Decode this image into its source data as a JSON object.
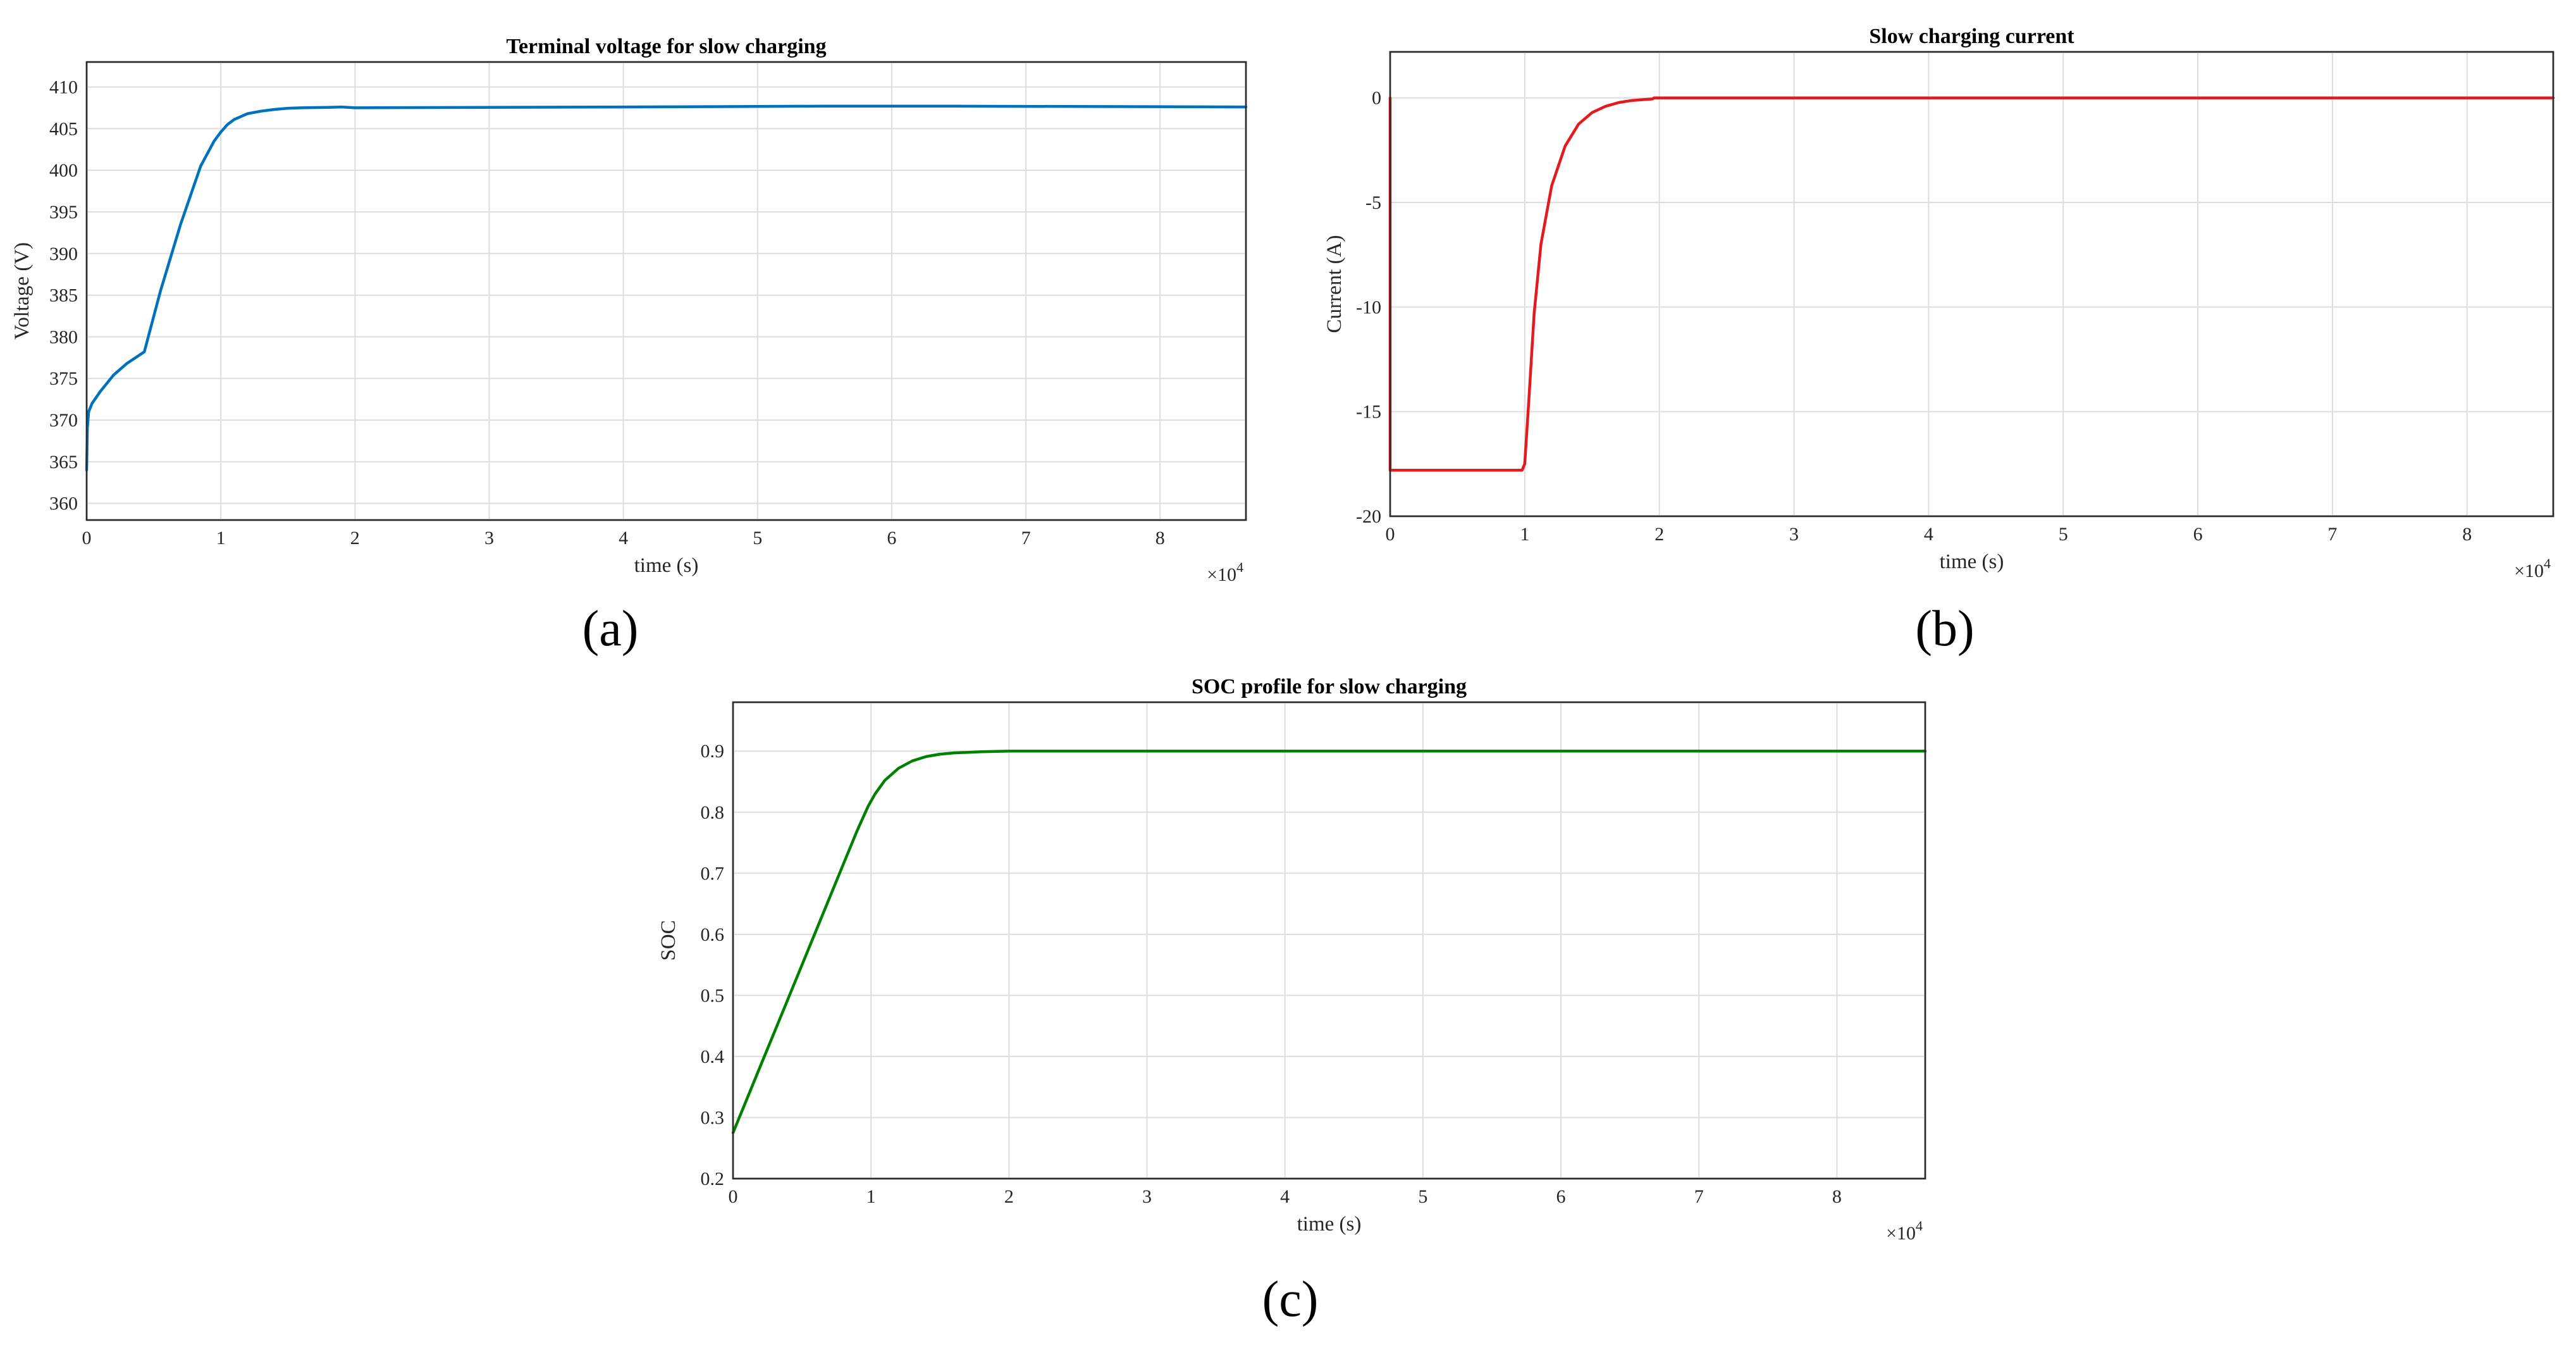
{
  "chart_data": [
    {
      "id": "a",
      "type": "line",
      "panel_label": "(a)",
      "title": "Terminal voltage for slow charging",
      "xlabel": "time (s)",
      "ylabel": "Voltage (V)",
      "x_exponent_label": "×10",
      "x_exponent_power": "4",
      "xlim": [
        0,
        86400
      ],
      "ylim": [
        358,
        413
      ],
      "xticks": [
        0,
        10000,
        20000,
        30000,
        40000,
        50000,
        60000,
        70000,
        80000
      ],
      "xtick_labels": [
        "0",
        "1",
        "2",
        "3",
        "4",
        "5",
        "6",
        "7",
        "8"
      ],
      "yticks": [
        360,
        365,
        370,
        375,
        380,
        385,
        390,
        395,
        400,
        405,
        410
      ],
      "ytick_labels": [
        "360",
        "365",
        "370",
        "375",
        "380",
        "385",
        "390",
        "395",
        "400",
        "405",
        "410"
      ],
      "grid": true,
      "series": [
        {
          "color": "#0072bd",
          "x": [
            0,
            50,
            150,
            400,
            1000,
            2000,
            3000,
            4300,
            5500,
            7000,
            8500,
            9500,
            10000,
            10500,
            11000,
            12000,
            13000,
            14000,
            15000,
            16000,
            18000,
            19000,
            20000,
            40000,
            55000,
            65000,
            86400
          ],
          "y": [
            364,
            369,
            371,
            372,
            373.4,
            375.4,
            376.8,
            378.2,
            385.5,
            393.5,
            400.5,
            403.5,
            404.6,
            405.5,
            406.1,
            406.8,
            407.1,
            407.3,
            407.45,
            407.5,
            407.55,
            407.6,
            407.5,
            407.6,
            407.7,
            407.7,
            407.6
          ]
        }
      ]
    },
    {
      "id": "b",
      "type": "line",
      "panel_label": "(b)",
      "title": "Slow charging current",
      "xlabel": "time (s)",
      "ylabel": "Current (A)",
      "x_exponent_label": "×10",
      "x_exponent_power": "4",
      "xlim": [
        0,
        86400
      ],
      "ylim": [
        -20,
        2.2
      ],
      "xticks": [
        0,
        10000,
        20000,
        30000,
        40000,
        50000,
        60000,
        70000,
        80000
      ],
      "xtick_labels": [
        "0",
        "1",
        "2",
        "3",
        "4",
        "5",
        "6",
        "7",
        "8"
      ],
      "yticks": [
        -20,
        -15,
        -10,
        -5,
        0
      ],
      "ytick_labels": [
        "-20",
        "-15",
        "-10",
        "-5",
        "0"
      ],
      "grid": true,
      "series": [
        {
          "color": "#e41a1c",
          "x": [
            0,
            0,
            1,
            9800,
            10000,
            10300,
            10700,
            11200,
            12000,
            13000,
            14000,
            15000,
            16000,
            17000,
            18000,
            19000,
            19500,
            19600,
            86400
          ],
          "y": [
            0,
            -17.8,
            -17.8,
            -17.8,
            -17.5,
            -14.5,
            -10.3,
            -7.0,
            -4.2,
            -2.3,
            -1.25,
            -0.7,
            -0.4,
            -0.22,
            -0.12,
            -0.07,
            -0.05,
            0,
            0
          ]
        }
      ]
    },
    {
      "id": "c",
      "type": "line",
      "panel_label": "(c)",
      "title": "SOC profile for slow charging",
      "xlabel": "time (s)",
      "ylabel": "SOC",
      "x_exponent_label": "×10",
      "x_exponent_power": "4",
      "xlim": [
        0,
        86400
      ],
      "ylim": [
        0.2,
        0.98
      ],
      "xticks": [
        0,
        10000,
        20000,
        30000,
        40000,
        50000,
        60000,
        70000,
        80000
      ],
      "xtick_labels": [
        "0",
        "1",
        "2",
        "3",
        "4",
        "5",
        "6",
        "7",
        "8"
      ],
      "yticks": [
        0.2,
        0.3,
        0.4,
        0.5,
        0.6,
        0.7,
        0.8,
        0.9
      ],
      "ytick_labels": [
        "0.2",
        "0.3",
        "0.4",
        "0.5",
        "0.6",
        "0.7",
        "0.8",
        "0.9"
      ],
      "grid": true,
      "series": [
        {
          "color": "#008000",
          "x": [
            0,
            2000,
            4000,
            6000,
            8000,
            9000,
            9800,
            10300,
            11000,
            12000,
            13000,
            14000,
            15000,
            16000,
            17000,
            18000,
            20000,
            86400
          ],
          "y": [
            0.275,
            0.385,
            0.495,
            0.605,
            0.715,
            0.77,
            0.81,
            0.83,
            0.852,
            0.872,
            0.884,
            0.891,
            0.895,
            0.897,
            0.898,
            0.899,
            0.9,
            0.9
          ]
        }
      ]
    }
  ]
}
